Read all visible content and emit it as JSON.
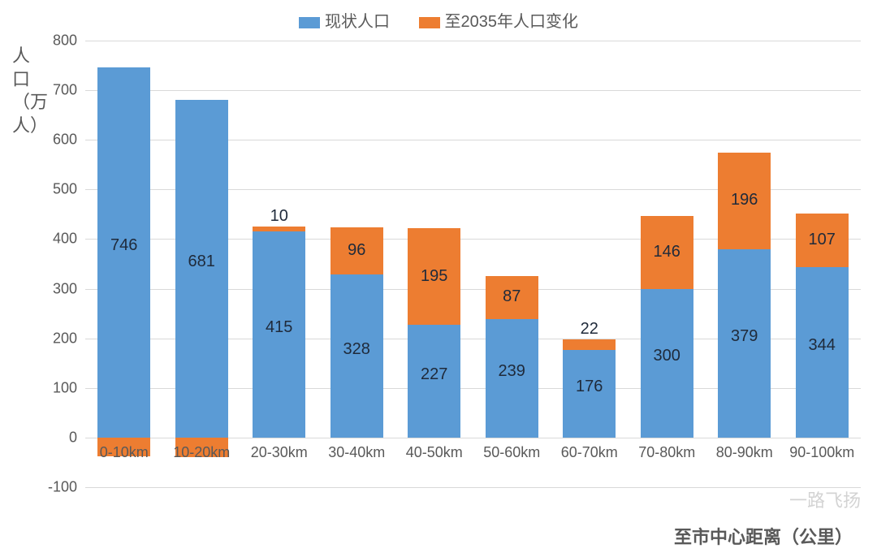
{
  "chart": {
    "type": "stacked-bar",
    "legend": {
      "series1": {
        "label": "现状人口",
        "color": "#5b9bd5"
      },
      "series2": {
        "label": "至2035年人口变化",
        "color": "#ed7d31"
      }
    },
    "y_axis": {
      "label": "人口（万人）",
      "min": -100,
      "max": 800,
      "tick_step": 100,
      "ticks": [
        -100,
        0,
        100,
        200,
        300,
        400,
        500,
        600,
        700,
        800
      ],
      "label_fontsize": 22,
      "tick_fontsize": 18,
      "grid_color": "#d9d9d9",
      "text_color": "#595959"
    },
    "x_axis": {
      "label": "至市中心距离（公里）",
      "categories": [
        "0-10km",
        "10-20km",
        "20-30km",
        "30-40km",
        "40-50km",
        "50-60km",
        "60-70km",
        "70-80km",
        "80-90km",
        "90-100km"
      ],
      "label_fontsize": 22,
      "tick_fontsize": 18,
      "text_color": "#595959"
    },
    "series1_values": [
      746,
      681,
      415,
      328,
      227,
      239,
      176,
      300,
      379,
      344
    ],
    "series2_values": [
      -38,
      -40,
      10,
      96,
      195,
      87,
      22,
      146,
      196,
      107
    ],
    "bar_width_ratio": 0.68,
    "background_color": "#ffffff",
    "data_label_color": "#1f2a3a",
    "data_label_fontsize": 20
  },
  "watermark": "一路飞扬"
}
